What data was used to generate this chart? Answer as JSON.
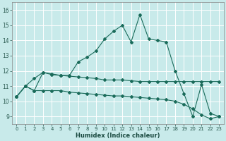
{
  "title": "",
  "xlabel": "Humidex (Indice chaleur)",
  "background_color": "#c8eaea",
  "grid_color": "#ffffff",
  "line_color": "#1a6b5a",
  "xlim": [
    -0.5,
    23.5
  ],
  "ylim": [
    8.5,
    16.5
  ],
  "xticks": [
    0,
    1,
    2,
    3,
    4,
    5,
    6,
    7,
    8,
    9,
    10,
    11,
    12,
    13,
    14,
    15,
    16,
    17,
    18,
    19,
    20,
    21,
    22,
    23
  ],
  "yticks": [
    9,
    10,
    11,
    12,
    13,
    14,
    15,
    16
  ],
  "line1_y": [
    10.3,
    11.0,
    11.5,
    11.9,
    11.8,
    11.7,
    11.7,
    12.6,
    12.9,
    13.3,
    14.1,
    14.6,
    15.0,
    13.9,
    15.7,
    14.1,
    14.0,
    13.9,
    12.0,
    10.5,
    9.0,
    11.1,
    9.2,
    9.0
  ],
  "line2_y": [
    10.3,
    11.0,
    10.7,
    11.9,
    11.75,
    11.7,
    11.65,
    11.6,
    11.55,
    11.5,
    11.4,
    11.4,
    11.4,
    11.35,
    11.3,
    11.3,
    11.3,
    11.3,
    11.3,
    11.3,
    11.3,
    11.3,
    11.3,
    11.3
  ],
  "line3_y": [
    10.3,
    11.0,
    10.7,
    10.7,
    10.7,
    10.7,
    10.6,
    10.55,
    10.5,
    10.45,
    10.4,
    10.35,
    10.35,
    10.3,
    10.25,
    10.2,
    10.15,
    10.1,
    10.0,
    9.8,
    9.5,
    9.1,
    8.85,
    9.0
  ]
}
